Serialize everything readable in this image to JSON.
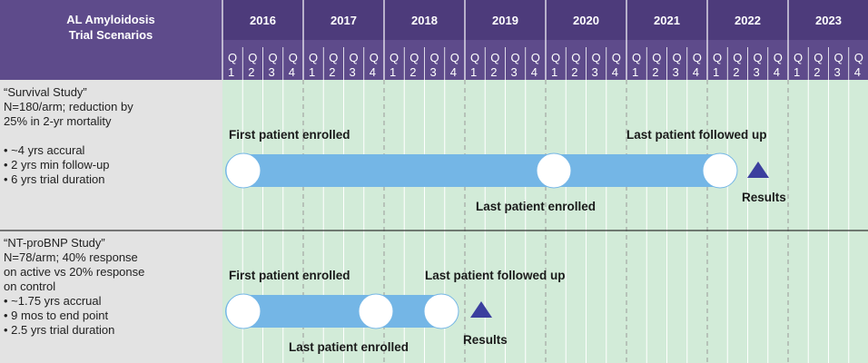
{
  "header": {
    "title_lines": [
      "AL Amyloidosis",
      "Trial Scenarios"
    ],
    "years": [
      "2016",
      "2017",
      "2018",
      "2019",
      "2020",
      "2021",
      "2022",
      "2023"
    ],
    "quarter_prefix": "Q",
    "quarters": [
      "1",
      "2",
      "3",
      "4"
    ]
  },
  "scenarios": [
    {
      "lines": [
        "“Survival Study”",
        "N=180/arm; reduction by",
        "25% in 2-yr mortality",
        "",
        "• ~4 yrs accural",
        "• 2 yrs min follow-up",
        "• 6 yrs trial duration"
      ],
      "milestones": {
        "first": "First patient enrolled",
        "last_enrolled": "Last patient enrolled",
        "last_followed": "Last patient followed up",
        "results": "Results"
      }
    },
    {
      "lines": [
        "“NT-proBNP Study”",
        "N=78/arm; 40% response",
        "on active vs 20% response",
        "on control",
        "• ~1.75 yrs accrual",
        "• 9 mos to end point",
        "• 2.5 yrs trial duration"
      ],
      "milestones": {
        "first": "First patient enrolled",
        "last_enrolled": "Last patient enrolled",
        "last_followed": "Last patient followed up",
        "results": "Results"
      }
    }
  ]
}
